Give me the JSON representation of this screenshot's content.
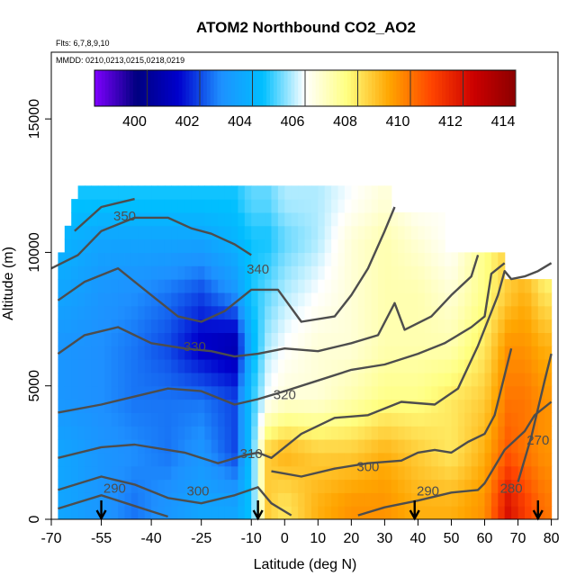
{
  "chart_data": {
    "type": "heatmap",
    "title": "ATOM2 Northbound CO2_AO2",
    "annotations": [
      "Flts: 6,7,8,9,10",
      "MMDD: 0210,0213,0215,0218,0219"
    ],
    "xlabel": "Latitude (deg N)",
    "ylabel": "Altitude (m)",
    "xlim": [
      -70,
      82
    ],
    "ylim": [
      0,
      17500
    ],
    "x_ticks": [
      -70,
      -55,
      -40,
      -25,
      -10,
      0,
      10,
      20,
      30,
      40,
      50,
      60,
      70,
      80
    ],
    "y_ticks": [
      0,
      5000,
      10000,
      15000
    ],
    "colorbar": {
      "range": [
        398,
        414
      ],
      "ticks": [
        400,
        402,
        404,
        406,
        408,
        410,
        412,
        414
      ],
      "colors": [
        "#7f00ff",
        "#000080",
        "#0000cd",
        "#1e90ff",
        "#00bfff",
        "#ffffff",
        "#ffff80",
        "#ffa500",
        "#ff4500",
        "#cc0000",
        "#8b0000"
      ]
    },
    "co2_field": {
      "description_units": "ppm",
      "latitudes": [
        -66,
        -55,
        -45,
        -35,
        -25,
        -15,
        -10,
        -5,
        0,
        10,
        20,
        30,
        40,
        50,
        60,
        67,
        72,
        78
      ],
      "altitudes": [
        500,
        2500,
        4500,
        6500,
        8500,
        10500,
        12000
      ],
      "values": [
        [
          403.5,
          403.0,
          402.5,
          403.0,
          403.5,
          403.5,
          404.5,
          408.5,
          408.0,
          409.0,
          409.5,
          409.5,
          409.0,
          409.0,
          409.5,
          412.0,
          411.0,
          410.0
        ],
        [
          403.5,
          403.0,
          402.8,
          402.5,
          403.0,
          402.0,
          404.5,
          408.5,
          409.0,
          408.5,
          408.5,
          409.0,
          408.5,
          408.0,
          409.0,
          410.5,
          410.0,
          409.5
        ],
        [
          403.0,
          402.8,
          402.5,
          402.5,
          402.5,
          402.0,
          404.5,
          406.0,
          406.5,
          406.5,
          407.0,
          407.5,
          407.5,
          408.0,
          408.5,
          410.0,
          410.0,
          409.5
        ],
        [
          403.0,
          402.8,
          402.5,
          402.0,
          401.0,
          400.5,
          404.0,
          405.5,
          406.0,
          406.5,
          406.5,
          407.0,
          407.0,
          407.0,
          408.0,
          409.5,
          409.5,
          409.0
        ],
        [
          403.5,
          403.0,
          402.8,
          402.5,
          402.0,
          403.0,
          404.5,
          405.0,
          405.5,
          406.0,
          406.5,
          407.0,
          407.0,
          406.5,
          407.5,
          408.5,
          409.0,
          408.0
        ],
        [
          404.0,
          403.5,
          403.5,
          403.5,
          403.5,
          404.0,
          404.5,
          404.5,
          405.0,
          405.5,
          406.5,
          407.0,
          406.5,
          406.0,
          407.5,
          408.5,
          408.0,
          407.0
        ],
        [
          404.5,
          404.5,
          404.5,
          404.5,
          404.5,
          404.5,
          405.0,
          405.0,
          405.5,
          405.5,
          406.0,
          406.5,
          406.0,
          null,
          null,
          null,
          null,
          null
        ]
      ]
    },
    "contours": [
      {
        "level": "290",
        "points": [
          [
            -68,
            400
          ],
          [
            -55,
            900
          ],
          [
            -45,
            500
          ],
          [
            -40,
            300
          ],
          [
            -35,
            100
          ]
        ]
      },
      {
        "level": "290",
        "points": [
          [
            22,
            150
          ],
          [
            30,
            450
          ],
          [
            40,
            700
          ],
          [
            50,
            1000
          ],
          [
            58,
            1100
          ],
          [
            60,
            1350
          ],
          [
            66,
            2600
          ],
          [
            72,
            3300
          ],
          [
            75,
            3900
          ],
          [
            80,
            4400
          ]
        ]
      },
      {
        "level": "300",
        "points": [
          [
            -68,
            1100
          ],
          [
            -55,
            1600
          ],
          [
            -45,
            1300
          ],
          [
            -35,
            800
          ],
          [
            -25,
            600
          ],
          [
            -15,
            900
          ],
          [
            -8,
            1200
          ],
          [
            -4,
            600
          ],
          [
            2,
            150
          ]
        ]
      },
      {
        "level": "300",
        "points": [
          [
            -4,
            1800
          ],
          [
            5,
            1600
          ],
          [
            15,
            1900
          ],
          [
            25,
            2100
          ],
          [
            35,
            2200
          ],
          [
            40,
            2500
          ],
          [
            45,
            2600
          ],
          [
            50,
            2500
          ],
          [
            55,
            2900
          ],
          [
            60,
            3200
          ],
          [
            63,
            3900
          ],
          [
            66,
            5400
          ],
          [
            68,
            6400
          ]
        ]
      },
      {
        "level": "310",
        "points": [
          [
            -68,
            2300
          ],
          [
            -55,
            2700
          ],
          [
            -45,
            2800
          ],
          [
            -30,
            2500
          ],
          [
            -20,
            2100
          ],
          [
            -12,
            2400
          ],
          [
            -8,
            2500
          ],
          [
            -4,
            2300
          ],
          [
            5,
            3200
          ],
          [
            15,
            3800
          ],
          [
            25,
            3900
          ],
          [
            35,
            4400
          ],
          [
            45,
            4300
          ],
          [
            52,
            4900
          ],
          [
            58,
            6500
          ],
          [
            64,
            8400
          ],
          [
            66,
            9300
          ],
          [
            68,
            9000
          ],
          [
            72,
            9100
          ],
          [
            76,
            9300
          ],
          [
            80,
            9600
          ]
        ]
      },
      {
        "level": "310",
        "points": [
          [
            70,
            1400
          ],
          [
            74,
            3100
          ],
          [
            78,
            5200
          ],
          [
            80,
            6200
          ]
        ]
      },
      {
        "level": "320",
        "points": [
          [
            -68,
            4000
          ],
          [
            -55,
            4300
          ],
          [
            -45,
            4600
          ],
          [
            -35,
            4900
          ],
          [
            -25,
            4800
          ],
          [
            -15,
            4300
          ],
          [
            -8,
            4500
          ],
          [
            0,
            4800
          ],
          [
            10,
            5200
          ],
          [
            20,
            5600
          ],
          [
            30,
            5800
          ],
          [
            40,
            6200
          ],
          [
            48,
            6600
          ],
          [
            56,
            7200
          ],
          [
            60,
            7600
          ],
          [
            62,
            9200
          ],
          [
            66,
            9600
          ]
        ]
      },
      {
        "level": "330",
        "points": [
          [
            -68,
            6200
          ],
          [
            -60,
            6900
          ],
          [
            -50,
            7200
          ],
          [
            -40,
            6600
          ],
          [
            -30,
            6400
          ],
          [
            -22,
            6300
          ],
          [
            -15,
            6100
          ],
          [
            -8,
            6200
          ],
          [
            0,
            6400
          ],
          [
            10,
            6300
          ],
          [
            20,
            6600
          ],
          [
            28,
            6900
          ],
          [
            33,
            8100
          ],
          [
            36,
            7100
          ],
          [
            44,
            7600
          ],
          [
            50,
            8400
          ],
          [
            56,
            9100
          ],
          [
            58,
            9900
          ]
        ]
      },
      {
        "level": "340",
        "points": [
          [
            -68,
            8200
          ],
          [
            -60,
            8900
          ],
          [
            -50,
            9400
          ],
          [
            -40,
            8400
          ],
          [
            -32,
            7600
          ],
          [
            -25,
            7400
          ],
          [
            -18,
            7800
          ],
          [
            -10,
            8600
          ],
          [
            -2,
            8600
          ],
          [
            5,
            7400
          ],
          [
            15,
            7600
          ],
          [
            20,
            8400
          ],
          [
            25,
            9400
          ],
          [
            30,
            10800
          ],
          [
            33,
            11700
          ]
        ]
      },
      {
        "level": "350",
        "points": [
          [
            -70,
            9400
          ],
          [
            -62,
            9900
          ],
          [
            -55,
            10800
          ],
          [
            -45,
            11300
          ],
          [
            -35,
            11300
          ],
          [
            -28,
            10900
          ],
          [
            -22,
            10700
          ],
          [
            -15,
            10300
          ],
          [
            -10,
            9900
          ]
        ]
      },
      {
        "level": "350",
        "points": [
          [
            -63,
            10800
          ],
          [
            -55,
            11700
          ],
          [
            -45,
            12000
          ]
        ]
      }
    ],
    "contour_labels": [
      {
        "text": "350",
        "x": -48,
        "y": 11200
      },
      {
        "text": "340",
        "x": -8,
        "y": 9200
      },
      {
        "text": "330",
        "x": -27,
        "y": 6300
      },
      {
        "text": "320",
        "x": 0,
        "y": 4500
      },
      {
        "text": "310",
        "x": -10,
        "y": 2300
      },
      {
        "text": "300",
        "x": 25,
        "y": 1800
      },
      {
        "text": "300",
        "x": -26,
        "y": 900
      },
      {
        "text": "290",
        "x": -51,
        "y": 1000
      },
      {
        "text": "290",
        "x": 43,
        "y": 900
      },
      {
        "text": "280",
        "x": 68,
        "y": 1000
      },
      {
        "text": "270",
        "x": 76,
        "y": 2800
      }
    ],
    "arrows_lat": [
      -55,
      -8,
      39,
      76
    ],
    "grid": false
  }
}
